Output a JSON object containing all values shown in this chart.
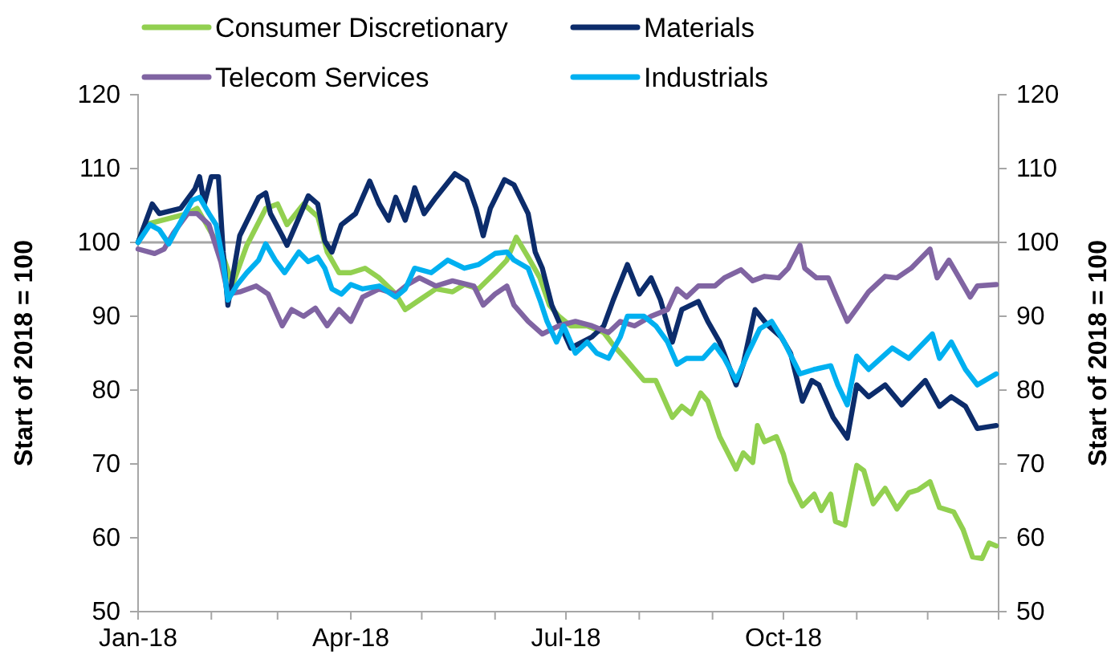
{
  "chart_data": {
    "type": "line",
    "xlim": [
      "2018-01-01",
      "2018-12-31"
    ],
    "xticks": [
      {
        "value": "2018-01-01",
        "label": "Jan-18"
      },
      {
        "value": "2018-02-01",
        "label": null
      },
      {
        "value": "2018-03-01",
        "label": null
      },
      {
        "value": "2018-04-01",
        "label": "Apr-18"
      },
      {
        "value": "2018-05-01",
        "label": null
      },
      {
        "value": "2018-06-01",
        "label": null
      },
      {
        "value": "2018-07-01",
        "label": "Jul-18"
      },
      {
        "value": "2018-08-01",
        "label": null
      },
      {
        "value": "2018-09-01",
        "label": null
      },
      {
        "value": "2018-10-01",
        "label": "Oct-18"
      },
      {
        "value": "2018-11-01",
        "label": null
      },
      {
        "value": "2018-12-01",
        "label": null
      }
    ],
    "ylim": [
      50,
      120
    ],
    "yticks": [
      50,
      60,
      70,
      80,
      90,
      100,
      110,
      120
    ],
    "y2lim": [
      50,
      120
    ],
    "y2ticks": [
      50,
      60,
      70,
      80,
      90,
      100,
      110,
      120
    ],
    "ylabel": "Start of 2018 = 100",
    "y2label": "Start of 2018 = 100",
    "grid": false,
    "legend": "top",
    "marker": "none",
    "line_style": "solid",
    "ref_lines": [
      {
        "axis": "y",
        "value": 100,
        "color": "#a6a6a6"
      }
    ],
    "series": [
      {
        "name": "Consumer Discretionary",
        "color": "#92d050",
        "x": [
          "2018-01-01",
          "2018-01-04",
          "2018-01-22",
          "2018-01-26",
          "2018-02-05",
          "2018-02-10",
          "2018-02-16",
          "2018-02-24",
          "2018-03-01",
          "2018-03-05",
          "2018-03-12",
          "2018-03-18",
          "2018-03-22",
          "2018-03-27",
          "2018-04-01",
          "2018-04-07",
          "2018-04-13",
          "2018-04-20",
          "2018-04-24",
          "2018-04-30",
          "2018-05-07",
          "2018-05-14",
          "2018-05-19",
          "2018-05-25",
          "2018-06-01",
          "2018-06-06",
          "2018-06-10",
          "2018-06-15",
          "2018-06-20",
          "2018-06-24",
          "2018-06-28",
          "2018-07-03",
          "2018-07-10",
          "2018-07-17",
          "2018-07-21",
          "2018-07-26",
          "2018-07-30",
          "2018-08-03",
          "2018-08-08",
          "2018-08-15",
          "2018-08-19",
          "2018-08-23",
          "2018-08-27",
          "2018-08-30",
          "2018-09-04",
          "2018-09-11",
          "2018-09-14",
          "2018-09-18",
          "2018-09-20",
          "2018-09-23",
          "2018-09-28",
          "2018-10-01",
          "2018-10-04",
          "2018-10-09",
          "2018-10-14",
          "2018-10-17",
          "2018-10-21",
          "2018-10-23",
          "2018-10-27",
          "2018-11-01",
          "2018-11-04",
          "2018-11-08",
          "2018-11-13",
          "2018-11-18",
          "2018-11-23",
          "2018-11-27",
          "2018-12-02",
          "2018-12-06",
          "2018-12-12",
          "2018-12-16",
          "2018-12-20",
          "2018-12-24",
          "2018-12-27",
          "2018-12-30"
        ],
        "values": [
          100,
          102.4,
          103.9,
          104.6,
          99.1,
          94.3,
          99.6,
          104.6,
          105.2,
          102.4,
          105.2,
          103.5,
          98.7,
          95.9,
          95.9,
          96.5,
          95.2,
          93.0,
          90.9,
          92.2,
          93.7,
          93.3,
          94.3,
          93.7,
          95.9,
          97.6,
          100.7,
          98.0,
          95.2,
          91.5,
          90.0,
          88.7,
          88.7,
          87.8,
          86.1,
          84.3,
          82.8,
          81.3,
          81.3,
          76.3,
          77.8,
          76.8,
          79.6,
          78.5,
          73.7,
          69.3,
          71.5,
          70.2,
          75.2,
          73.0,
          73.7,
          71.3,
          67.6,
          64.3,
          65.9,
          63.7,
          65.9,
          62.2,
          61.7,
          69.8,
          69.1,
          64.6,
          66.7,
          63.9,
          66.1,
          66.5,
          67.6,
          64.1,
          63.5,
          61.1,
          57.4,
          57.2,
          59.3,
          58.9
        ]
      },
      {
        "name": "Materials",
        "color": "#0c2c6b",
        "x": [
          "2018-01-01",
          "2018-01-07",
          "2018-01-10",
          "2018-01-19",
          "2018-01-25",
          "2018-01-27",
          "2018-01-29",
          "2018-02-01",
          "2018-02-04",
          "2018-02-06",
          "2018-02-08",
          "2018-02-13",
          "2018-02-21",
          "2018-02-24",
          "2018-02-26",
          "2018-03-03",
          "2018-03-05",
          "2018-03-14",
          "2018-03-18",
          "2018-03-21",
          "2018-03-24",
          "2018-03-28",
          "2018-04-03",
          "2018-04-09",
          "2018-04-13",
          "2018-04-17",
          "2018-04-20",
          "2018-04-24",
          "2018-04-27",
          "2018-04-28",
          "2018-05-02",
          "2018-05-07",
          "2018-05-15",
          "2018-05-20",
          "2018-05-24",
          "2018-05-27",
          "2018-05-30",
          "2018-06-05",
          "2018-06-09",
          "2018-06-15",
          "2018-06-18",
          "2018-06-21",
          "2018-06-25",
          "2018-06-28",
          "2018-07-03",
          "2018-07-12",
          "2018-07-17",
          "2018-07-21",
          "2018-07-27",
          "2018-08-01",
          "2018-08-06",
          "2018-08-10",
          "2018-08-15",
          "2018-08-19",
          "2018-08-26",
          "2018-08-30",
          "2018-09-04",
          "2018-09-11",
          "2018-09-14",
          "2018-09-19",
          "2018-09-24",
          "2018-09-30",
          "2018-10-04",
          "2018-10-09",
          "2018-10-13",
          "2018-10-16",
          "2018-10-22",
          "2018-10-28",
          "2018-11-01",
          "2018-11-06",
          "2018-11-13",
          "2018-11-20",
          "2018-11-30",
          "2018-12-06",
          "2018-12-11",
          "2018-12-17",
          "2018-12-22",
          "2018-12-30"
        ],
        "values": [
          100,
          105.2,
          103.9,
          104.6,
          107.2,
          108.9,
          105.2,
          108.9,
          108.9,
          98.7,
          91.5,
          100.9,
          106.1,
          106.7,
          103.9,
          100.9,
          99.6,
          106.3,
          105.2,
          100.2,
          98.7,
          102.4,
          103.9,
          108.3,
          105.2,
          103.0,
          106.1,
          103.0,
          106.1,
          107.4,
          103.9,
          106.1,
          109.3,
          108.3,
          104.6,
          100.9,
          104.6,
          108.5,
          107.8,
          103.9,
          98.7,
          96.5,
          91.5,
          89.3,
          85.7,
          87.2,
          88.7,
          92.2,
          97.0,
          93.0,
          95.2,
          92.2,
          86.5,
          90.9,
          92.0,
          89.3,
          86.5,
          80.7,
          83.5,
          90.9,
          88.9,
          87.2,
          85.0,
          78.5,
          81.3,
          80.7,
          76.3,
          73.5,
          80.7,
          79.1,
          80.7,
          78.0,
          81.3,
          77.8,
          79.1,
          77.8,
          74.8,
          75.2
        ]
      },
      {
        "name": "Telecom Services",
        "color": "#8064a2",
        "x": [
          "2018-01-01",
          "2018-01-08",
          "2018-01-12",
          "2018-01-16",
          "2018-01-22",
          "2018-01-26",
          "2018-01-31",
          "2018-02-05",
          "2018-02-08",
          "2018-02-13",
          "2018-02-20",
          "2018-02-25",
          "2018-03-03",
          "2018-03-07",
          "2018-03-12",
          "2018-03-17",
          "2018-03-22",
          "2018-03-27",
          "2018-04-01",
          "2018-04-06",
          "2018-04-13",
          "2018-04-20",
          "2018-04-25",
          "2018-04-30",
          "2018-05-07",
          "2018-05-14",
          "2018-05-23",
          "2018-05-27",
          "2018-06-01",
          "2018-06-06",
          "2018-06-09",
          "2018-06-15",
          "2018-06-21",
          "2018-06-28",
          "2018-07-05",
          "2018-07-12",
          "2018-07-19",
          "2018-07-24",
          "2018-07-30",
          "2018-08-06",
          "2018-08-13",
          "2018-08-17",
          "2018-08-21",
          "2018-08-26",
          "2018-09-02",
          "2018-09-06",
          "2018-09-13",
          "2018-09-18",
          "2018-09-23",
          "2018-09-29",
          "2018-10-03",
          "2018-10-08",
          "2018-10-10",
          "2018-10-15",
          "2018-10-20",
          "2018-10-24",
          "2018-10-28",
          "2018-11-02",
          "2018-11-06",
          "2018-11-13",
          "2018-11-18",
          "2018-11-24",
          "2018-12-02",
          "2018-12-05",
          "2018-12-10",
          "2018-12-14",
          "2018-12-19",
          "2018-12-22",
          "2018-12-30"
        ],
        "values": [
          99.1,
          98.5,
          99.1,
          101.3,
          103.9,
          103.9,
          102.4,
          97.4,
          93.0,
          93.3,
          94.1,
          93.0,
          88.7,
          90.9,
          90.0,
          91.1,
          88.7,
          90.9,
          89.3,
          92.6,
          93.7,
          93.0,
          94.3,
          95.2,
          94.1,
          94.8,
          94.1,
          91.5,
          93.0,
          94.1,
          91.5,
          89.3,
          87.6,
          88.7,
          89.3,
          88.7,
          87.8,
          89.3,
          88.7,
          90.0,
          90.9,
          93.7,
          92.6,
          94.1,
          94.1,
          95.2,
          96.3,
          94.8,
          95.4,
          95.2,
          96.5,
          99.6,
          96.5,
          95.2,
          95.2,
          92.2,
          89.3,
          91.5,
          93.3,
          95.4,
          95.2,
          96.5,
          99.1,
          95.2,
          97.6,
          95.4,
          92.6,
          94.1,
          94.3
        ]
      },
      {
        "name": "Industrials",
        "color": "#00b0f0",
        "x": [
          "2018-01-01",
          "2018-01-06",
          "2018-01-10",
          "2018-01-14",
          "2018-01-19",
          "2018-01-24",
          "2018-01-27",
          "2018-01-31",
          "2018-02-03",
          "2018-02-06",
          "2018-02-08",
          "2018-02-12",
          "2018-02-16",
          "2018-02-21",
          "2018-02-24",
          "2018-02-28",
          "2018-03-04",
          "2018-03-10",
          "2018-03-14",
          "2018-03-18",
          "2018-03-21",
          "2018-03-24",
          "2018-03-28",
          "2018-04-01",
          "2018-04-06",
          "2018-04-13",
          "2018-04-20",
          "2018-04-24",
          "2018-04-28",
          "2018-05-05",
          "2018-05-12",
          "2018-05-19",
          "2018-05-25",
          "2018-06-01",
          "2018-06-06",
          "2018-06-09",
          "2018-06-15",
          "2018-06-20",
          "2018-06-23",
          "2018-06-27",
          "2018-06-30",
          "2018-07-05",
          "2018-07-10",
          "2018-07-14",
          "2018-07-19",
          "2018-07-24",
          "2018-07-27",
          "2018-08-03",
          "2018-08-08",
          "2018-08-13",
          "2018-08-17",
          "2018-08-21",
          "2018-08-28",
          "2018-09-02",
          "2018-09-06",
          "2018-09-11",
          "2018-09-16",
          "2018-09-21",
          "2018-09-26",
          "2018-10-01",
          "2018-10-08",
          "2018-10-14",
          "2018-10-21",
          "2018-10-24",
          "2018-10-28",
          "2018-11-01",
          "2018-11-06",
          "2018-11-16",
          "2018-11-23",
          "2018-12-03",
          "2018-12-06",
          "2018-12-11",
          "2018-12-17",
          "2018-12-22",
          "2018-12-30"
        ],
        "values": [
          100,
          102.4,
          101.7,
          99.8,
          102.8,
          105.7,
          106.1,
          103.9,
          102.4,
          97.4,
          92.2,
          94.3,
          95.9,
          97.6,
          99.8,
          97.6,
          95.9,
          98.7,
          97.4,
          98.0,
          96.5,
          93.7,
          93.0,
          94.3,
          93.7,
          94.1,
          92.6,
          93.7,
          96.5,
          95.9,
          97.6,
          96.5,
          97.0,
          98.5,
          98.7,
          97.6,
          96.5,
          92.2,
          89.3,
          86.5,
          88.7,
          85.0,
          86.5,
          85.0,
          84.3,
          87.2,
          90.0,
          90.0,
          88.7,
          86.5,
          83.5,
          84.3,
          84.3,
          86.1,
          84.3,
          81.3,
          85.0,
          88.3,
          89.3,
          86.7,
          82.2,
          82.8,
          83.3,
          80.7,
          78.0,
          84.6,
          82.8,
          85.7,
          84.3,
          87.6,
          84.3,
          86.5,
          82.8,
          80.7,
          82.2
        ]
      }
    ]
  }
}
